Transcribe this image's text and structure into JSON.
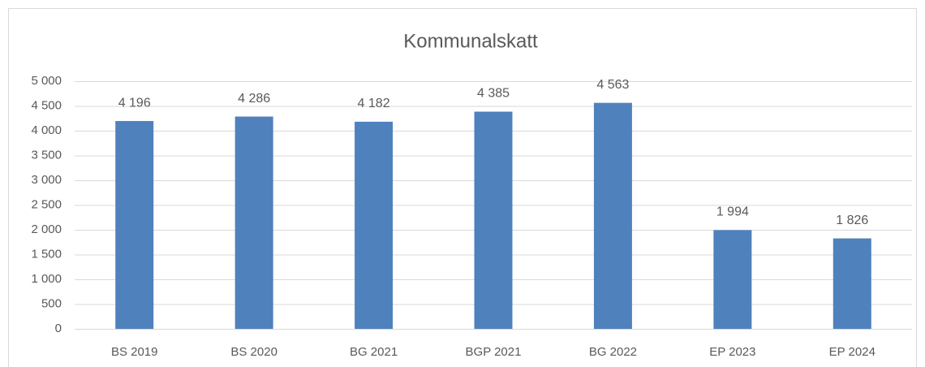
{
  "chart_data": {
    "type": "bar",
    "title": "Kommunalskatt",
    "categories": [
      "BS 2019",
      "BS 2020",
      "BG 2021",
      "BGP 2021",
      "BG 2022",
      "EP 2023",
      "EP 2024"
    ],
    "values": [
      4196,
      4286,
      4182,
      4385,
      4563,
      1994,
      1826
    ],
    "value_labels": [
      "4 196",
      "4 286",
      "4 182",
      "4 385",
      "4 563",
      "1 994",
      "1 826"
    ],
    "color": "#4f81bd",
    "ylim": [
      0,
      5000
    ],
    "yticks": [
      0,
      500,
      {
        "value": 1000,
        "label": "1 000"
      },
      {
        "value": 1500,
        "label": "1 500"
      },
      {
        "value": 2000,
        "label": "2 000"
      },
      {
        "value": 2500,
        "label": "2 500"
      },
      {
        "value": 3000,
        "label": "3 000"
      },
      {
        "value": 3500,
        "label": "3 500"
      },
      {
        "value": 4000,
        "label": "4 000"
      },
      {
        "value": 4500,
        "label": "4 500"
      },
      {
        "value": 5000,
        "label": "5 000"
      }
    ],
    "grid": true
  }
}
